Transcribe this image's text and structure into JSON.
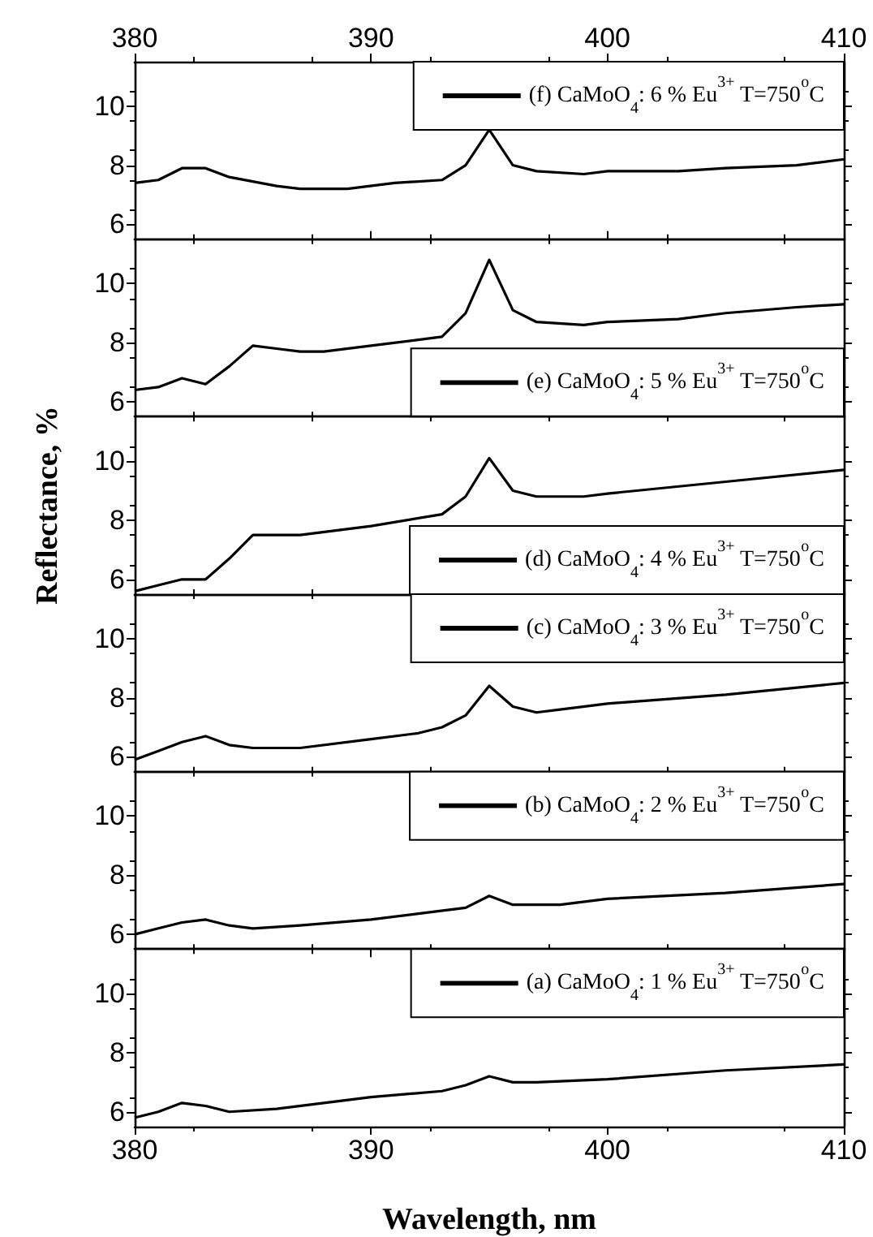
{
  "chart_data": [
    {
      "type": "line",
      "xlim": [
        380,
        410
      ],
      "x2lim": [
        380,
        410
      ],
      "x2ticks": [
        380,
        390,
        400,
        410
      ],
      "ylim": [
        5.5,
        11.5
      ],
      "yticks": [
        6,
        8,
        10
      ],
      "tick_labels": "y",
      "legend": "top right",
      "series": [
        {
          "name": "(f) CaMoO$_{4}$: 6 % Eu$^{3+}$ T=750$^{o}$C",
          "color": "#000000",
          "x": [
            380,
            381,
            382,
            383,
            384,
            386,
            387,
            389,
            391,
            393,
            394,
            395,
            396,
            397,
            399,
            400,
            403,
            405,
            408,
            410
          ],
          "values": [
            7.4,
            7.5,
            7.9,
            7.9,
            7.6,
            7.3,
            7.2,
            7.2,
            7.4,
            7.5,
            8.0,
            9.2,
            8.0,
            7.8,
            7.7,
            7.8,
            7.8,
            7.9,
            8.0,
            8.2
          ]
        }
      ]
    },
    {
      "type": "line",
      "xlim": [
        380,
        410
      ],
      "ylim": [
        5.5,
        11.5
      ],
      "yticks": [
        6,
        8,
        10
      ],
      "tick_labels": "y",
      "legend": "bottom right",
      "series": [
        {
          "name": "(e) CaMoO$_{4}$: 5 % Eu$^{3+}$ T=750$^{o}$C",
          "color": "#000000",
          "x": [
            380,
            381,
            382,
            383,
            384,
            385,
            386,
            387,
            388,
            390,
            393,
            394,
            395,
            396,
            397,
            399,
            400,
            403,
            405,
            408,
            410
          ],
          "values": [
            6.4,
            6.5,
            6.8,
            6.6,
            7.2,
            7.9,
            7.8,
            7.7,
            7.7,
            7.9,
            8.2,
            9.0,
            10.8,
            9.1,
            8.7,
            8.6,
            8.7,
            8.8,
            9.0,
            9.2,
            9.3
          ]
        }
      ]
    },
    {
      "type": "line",
      "xlim": [
        380,
        410
      ],
      "ylim": [
        5.5,
        11.5
      ],
      "yticks": [
        6,
        8,
        10
      ],
      "tick_labels": "y",
      "legend": "bottom right",
      "ylabel": "Reflectance, %",
      "series": [
        {
          "name": "(d) CaMoO$_{4}$: 4 % Eu$^{3+}$ T=750$^{o}$C",
          "color": "#000000",
          "x": [
            380,
            381,
            382,
            383,
            384,
            385,
            387,
            390,
            393,
            394,
            395,
            396,
            397,
            398,
            399,
            400,
            405,
            410
          ],
          "values": [
            5.6,
            5.8,
            6.0,
            6.0,
            6.7,
            7.5,
            7.5,
            7.8,
            8.2,
            8.8,
            10.1,
            9.0,
            8.8,
            8.8,
            8.8,
            8.9,
            9.3,
            9.7
          ]
        }
      ]
    },
    {
      "type": "line",
      "xlim": [
        380,
        410
      ],
      "ylim": [
        5.5,
        11.5
      ],
      "yticks": [
        6,
        8,
        10
      ],
      "tick_labels": "y",
      "legend": "top right",
      "series": [
        {
          "name": "(c) CaMoO$_{4}$: 3 % Eu$^{3+}$ T=750$^{o}$C",
          "color": "#000000",
          "x": [
            380,
            381,
            382,
            383,
            384,
            385,
            387,
            390,
            392,
            393,
            394,
            395,
            396,
            397,
            398,
            400,
            405,
            410
          ],
          "values": [
            5.9,
            6.2,
            6.5,
            6.7,
            6.4,
            6.3,
            6.3,
            6.6,
            6.8,
            7.0,
            7.4,
            8.4,
            7.7,
            7.5,
            7.6,
            7.8,
            8.1,
            8.5
          ]
        }
      ]
    },
    {
      "type": "line",
      "xlim": [
        380,
        410
      ],
      "ylim": [
        5.5,
        11.5
      ],
      "yticks": [
        6,
        8,
        10
      ],
      "tick_labels": "y",
      "legend": "top right",
      "series": [
        {
          "name": "(b) CaMoO$_{4}$: 2 % Eu$^{3+}$ T=750$^{o}$C",
          "color": "#000000",
          "x": [
            380,
            381,
            382,
            383,
            384,
            385,
            387,
            390,
            392,
            394,
            395,
            396,
            398,
            400,
            405,
            410
          ],
          "values": [
            6.0,
            6.2,
            6.4,
            6.5,
            6.3,
            6.2,
            6.3,
            6.5,
            6.7,
            6.9,
            7.3,
            7.0,
            7.0,
            7.2,
            7.4,
            7.7
          ]
        }
      ]
    },
    {
      "type": "line",
      "xlim": [
        380,
        410
      ],
      "xticks": [
        380,
        390,
        400,
        410
      ],
      "ylim": [
        5.5,
        11.5
      ],
      "yticks": [
        6,
        8,
        10
      ],
      "legend": "top right",
      "xlabel": "Wavelength, nm",
      "series": [
        {
          "name": "(a) CaMoO$_{4}$: 1 % Eu$^{3+}$ T=750$^{o}$C",
          "color": "#000000",
          "x": [
            380,
            381,
            382,
            383,
            384,
            386,
            388,
            390,
            393,
            394,
            395,
            396,
            397,
            400,
            405,
            410
          ],
          "values": [
            5.8,
            6.0,
            6.3,
            6.2,
            6.0,
            6.1,
            6.3,
            6.5,
            6.7,
            6.9,
            7.2,
            7.0,
            7.0,
            7.1,
            7.4,
            7.6
          ]
        }
      ]
    }
  ]
}
